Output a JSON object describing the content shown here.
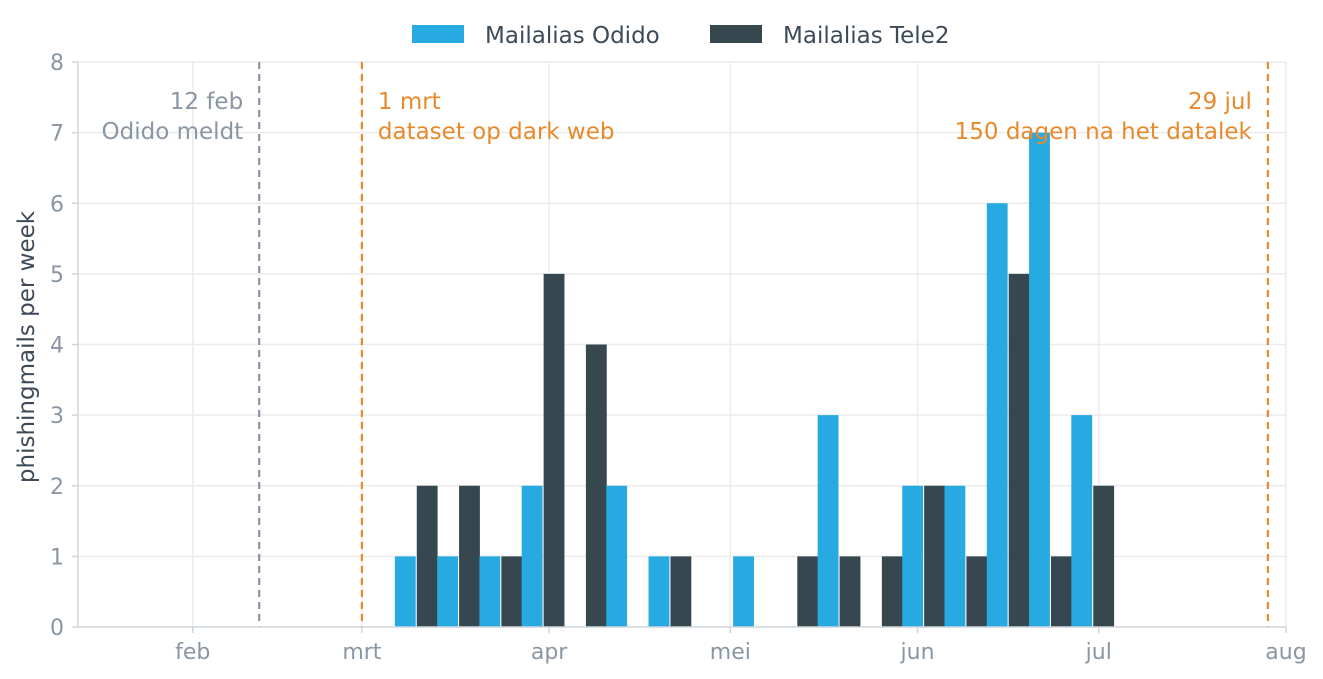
{
  "chart_data": {
    "type": "bar",
    "title": "",
    "xlabel": "",
    "ylabel": "phishingmails per week",
    "ylim": [
      0,
      8
    ],
    "yticks": [
      0,
      1,
      2,
      3,
      4,
      5,
      6,
      7,
      8
    ],
    "x_range": [
      "2025-01-13",
      "2025-08-01"
    ],
    "x_ticks": [
      {
        "date": "2025-02-01",
        "label": "feb"
      },
      {
        "date": "2025-03-01",
        "label": "mrt"
      },
      {
        "date": "2025-04-01",
        "label": "apr"
      },
      {
        "date": "2025-05-01",
        "label": "mei"
      },
      {
        "date": "2025-06-01",
        "label": "jun"
      },
      {
        "date": "2025-07-01",
        "label": "jul"
      },
      {
        "date": "2025-08-01",
        "label": "aug"
      }
    ],
    "grid": true,
    "legend_position": "top-center",
    "weeks": [
      "2025-03-10",
      "2025-03-17",
      "2025-03-24",
      "2025-03-31",
      "2025-04-07",
      "2025-04-14",
      "2025-04-21",
      "2025-04-28",
      "2025-05-05",
      "2025-05-12",
      "2025-05-19",
      "2025-05-26",
      "2025-06-02",
      "2025-06-09",
      "2025-06-16",
      "2025-06-23",
      "2025-06-30"
    ],
    "series": [
      {
        "name": "Mailalias Odido",
        "color": "#27a9e1",
        "values": [
          1,
          1,
          1,
          2,
          0,
          2,
          1,
          0,
          1,
          0,
          3,
          0,
          2,
          2,
          6,
          7,
          3
        ]
      },
      {
        "name": "Mailalias Tele2",
        "color": "#37474f",
        "values": [
          2,
          2,
          1,
          5,
          4,
          0,
          1,
          0,
          0,
          1,
          1,
          1,
          2,
          1,
          5,
          1,
          2
        ]
      }
    ],
    "annotations": [
      {
        "date": "2025-02-12",
        "color": "#8a96a3",
        "side": "left",
        "lines": [
          "12 feb",
          "Odido meldt"
        ]
      },
      {
        "date": "2025-03-01",
        "color": "#e8892b",
        "side": "right",
        "lines": [
          "1 mrt",
          "dataset op dark web"
        ]
      },
      {
        "date": "2025-07-29",
        "color": "#e8892b",
        "side": "left",
        "lines": [
          "29 jul",
          "150 dagen na het datalek"
        ]
      }
    ]
  }
}
